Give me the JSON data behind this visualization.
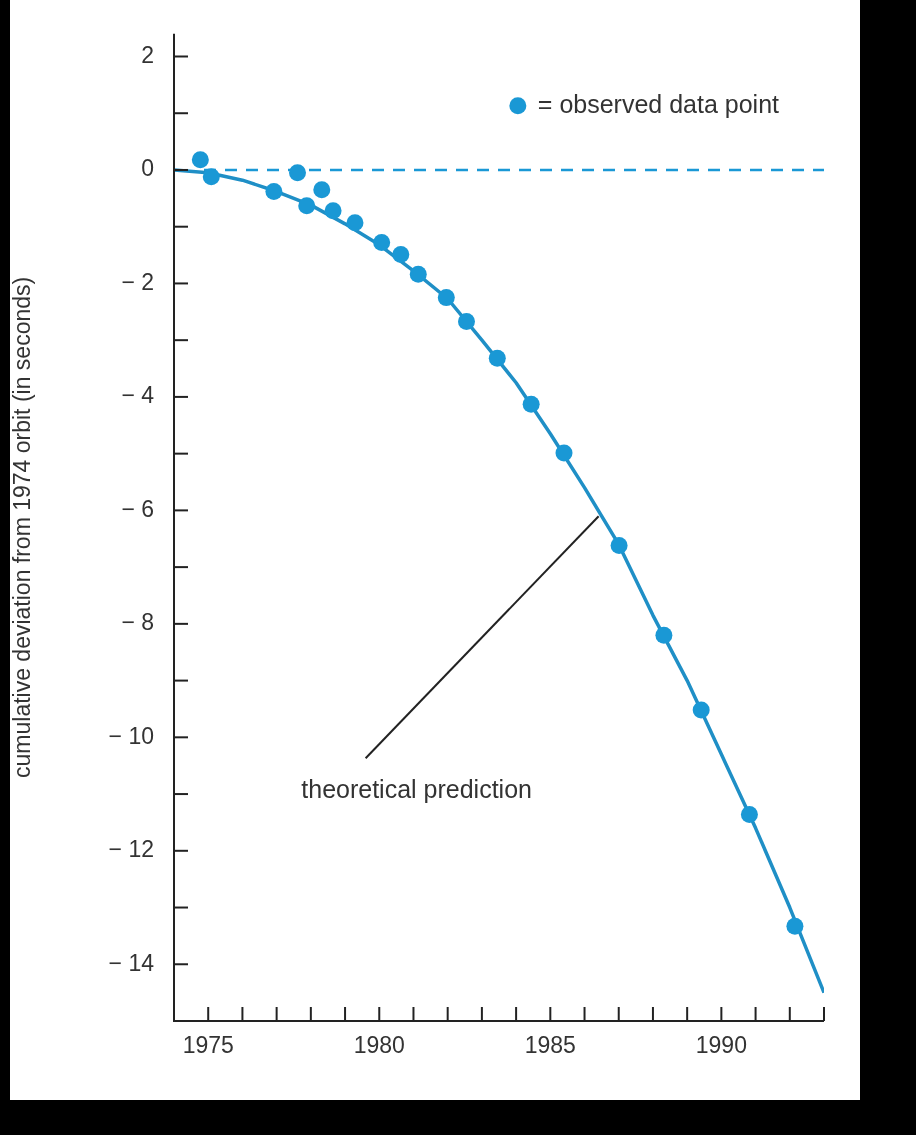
{
  "chart_data": {
    "type": "scatter",
    "ylabel": "cumulative deviation from 1974 orbit (in seconds)",
    "xlim": [
      1974,
      1993
    ],
    "xticks": [
      1975,
      {
        "value": 1976,
        "label": null
      },
      {
        "value": 1977,
        "label": null
      },
      {
        "value": 1978,
        "label": null
      },
      {
        "value": 1979,
        "label": null
      },
      1980,
      {
        "value": 1981,
        "label": null
      },
      {
        "value": 1982,
        "label": null
      },
      {
        "value": 1983,
        "label": null
      },
      {
        "value": 1984,
        "label": null
      },
      1985,
      {
        "value": 1986,
        "label": null
      },
      {
        "value": 1987,
        "label": null
      },
      {
        "value": 1988,
        "label": null
      },
      {
        "value": 1989,
        "label": null
      },
      1990,
      {
        "value": 1991,
        "label": null
      },
      {
        "value": 1992,
        "label": null
      },
      {
        "value": 1993,
        "label": null
      }
    ],
    "ylim": [
      -15,
      2.4
    ],
    "yticks": [
      2,
      {
        "value": 1,
        "label": null
      },
      0,
      {
        "value": -1,
        "label": null
      },
      -2,
      {
        "value": -3,
        "label": null
      },
      -4,
      {
        "value": -5,
        "label": null
      },
      -6,
      {
        "value": -7,
        "label": null
      },
      -8,
      {
        "value": -9,
        "label": null
      },
      -10,
      {
        "value": -11,
        "label": null
      },
      -12,
      {
        "value": -13,
        "label": null
      },
      -14
    ],
    "grid": false,
    "legend": "top right",
    "marker": "circle",
    "series": [
      {
        "name": "= observed data point",
        "color": "#1a98d5",
        "x": [
          1974.77,
          1975.09,
          1976.92,
          1977.61,
          1977.88,
          1978.32,
          1978.65,
          1979.29,
          1980.07,
          1980.63,
          1981.14,
          1981.96,
          1982.55,
          1983.45,
          1984.44,
          1985.4,
          1987.01,
          1988.32,
          1989.41,
          1990.82,
          1992.15
        ],
        "values": [
          0.18,
          -0.12,
          -0.38,
          -0.05,
          -0.63,
          -0.35,
          -0.72,
          -0.93,
          -1.28,
          -1.49,
          -1.84,
          -2.25,
          -2.67,
          -3.32,
          -4.13,
          -4.99,
          -6.62,
          -8.2,
          -9.52,
          -11.36,
          -13.33
        ]
      },
      {
        "type": "line",
        "color": "#1f8fc6",
        "marker": "none",
        "x": [
          1974,
          1975,
          1976,
          1977,
          1978,
          1979,
          1980,
          1981,
          1982,
          1983,
          1984,
          1985,
          1986,
          1987,
          1988,
          1989,
          1990,
          1991,
          1992,
          1993
        ],
        "values": [
          0,
          -0.05,
          -0.18,
          -0.38,
          -0.62,
          -0.95,
          -1.32,
          -1.78,
          -2.27,
          -3.0,
          -3.75,
          -4.65,
          -5.6,
          -6.6,
          -7.85,
          -9.0,
          -10.3,
          -11.6,
          -13.0,
          -14.5
        ]
      }
    ],
    "ref_lines": [
      {
        "axis": "y",
        "value": 0,
        "color": "#1a98d5",
        "line_style": "dashed"
      }
    ],
    "annotations": [
      {
        "text": "theoretical prediction",
        "x": 1986.5,
        "y": -6.05
      }
    ]
  }
}
